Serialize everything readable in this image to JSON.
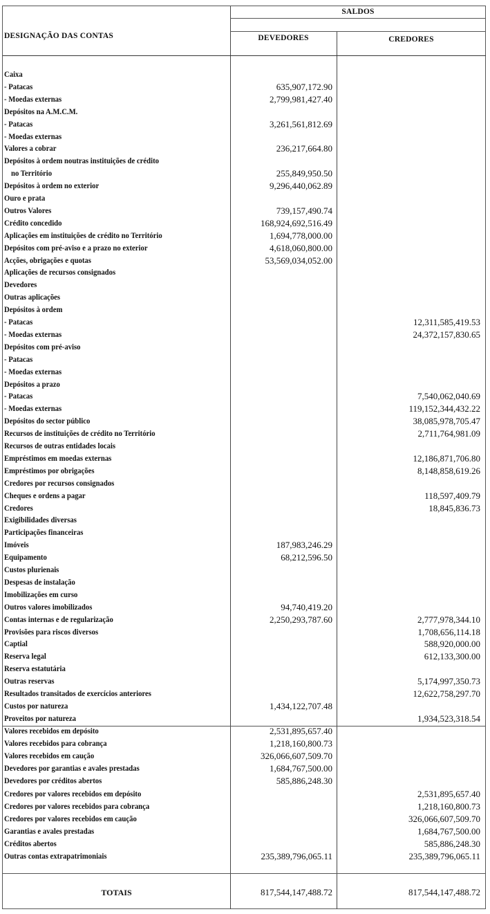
{
  "header": {
    "account_col": "DESIGNAÇÃO DAS CONTAS",
    "group": "SALDOS",
    "debit_col": "DEVEDORES",
    "credit_col": "CREDORES"
  },
  "rows": [
    {
      "label": "Caixa",
      "devedores": "",
      "credores": ""
    },
    {
      "label": "- Patacas",
      "devedores": "635,907,172.90",
      "credores": ""
    },
    {
      "label": "- Moedas externas",
      "devedores": "2,799,981,427.40",
      "credores": ""
    },
    {
      "label": "Depósitos na A.M.C.M.",
      "devedores": "",
      "credores": ""
    },
    {
      "label": "- Patacas",
      "devedores": "3,261,561,812.69",
      "credores": ""
    },
    {
      "label": "- Moedas externas",
      "devedores": "",
      "credores": ""
    },
    {
      "label": "Valores a cobrar",
      "devedores": "236,217,664.80",
      "credores": ""
    },
    {
      "label": "Depósitos à ordem noutras instituições de crédito",
      "devedores": "",
      "credores": ""
    },
    {
      "label": "no Território",
      "devedores": "255,849,950.50",
      "credores": "",
      "indent": true
    },
    {
      "label": "Depósitos à ordem no exterior",
      "devedores": "9,296,440,062.89",
      "credores": ""
    },
    {
      "label": "Ouro e prata",
      "devedores": "",
      "credores": ""
    },
    {
      "label": "Outros Valores",
      "devedores": "739,157,490.74",
      "credores": ""
    },
    {
      "label": "Crédito concedido",
      "devedores": "168,924,692,516.49",
      "credores": ""
    },
    {
      "label": "Aplicações em instituições de crédito no Território",
      "devedores": "1,694,778,000.00",
      "credores": ""
    },
    {
      "label": "Depósitos com pré-aviso e a prazo no exterior",
      "devedores": "4,618,060,800.00",
      "credores": ""
    },
    {
      "label": "Acções, obrigações e quotas",
      "devedores": "53,569,034,052.00",
      "credores": ""
    },
    {
      "label": "Aplicações de recursos consignados",
      "devedores": "",
      "credores": ""
    },
    {
      "label": "Devedores",
      "devedores": "",
      "credores": ""
    },
    {
      "label": "Outras aplicações",
      "devedores": "",
      "credores": ""
    },
    {
      "label": "Depósitos à ordem",
      "devedores": "",
      "credores": ""
    },
    {
      "label": "- Patacas",
      "devedores": "",
      "credores": "12,311,585,419.53"
    },
    {
      "label": "- Moedas externas",
      "devedores": "",
      "credores": "24,372,157,830.65"
    },
    {
      "label": "Depósitos com pré-aviso",
      "devedores": "",
      "credores": ""
    },
    {
      "label": "- Patacas",
      "devedores": "",
      "credores": ""
    },
    {
      "label": "- Moedas externas",
      "devedores": "",
      "credores": ""
    },
    {
      "label": "Depósitos a prazo",
      "devedores": "",
      "credores": ""
    },
    {
      "label": "- Patacas",
      "devedores": "",
      "credores": "7,540,062,040.69"
    },
    {
      "label": "- Moedas externas",
      "devedores": "",
      "credores": "119,152,344,432.22"
    },
    {
      "label": "Depósitos do sector público",
      "devedores": "",
      "credores": "38,085,978,705.47"
    },
    {
      "label": "Recursos de instituições de crédito no Território",
      "devedores": "",
      "credores": "2,711,764,981.09"
    },
    {
      "label": "Recursos de outras entidades locais",
      "devedores": "",
      "credores": ""
    },
    {
      "label": "Empréstimos em moedas externas",
      "devedores": "",
      "credores": "12,186,871,706.80"
    },
    {
      "label": "Empréstimos por obrigações",
      "devedores": "",
      "credores": "8,148,858,619.26"
    },
    {
      "label": "Credores por recursos consignados",
      "devedores": "",
      "credores": ""
    },
    {
      "label": "Cheques e ordens a pagar",
      "devedores": "",
      "credores": "118,597,409.79"
    },
    {
      "label": "Credores",
      "devedores": "",
      "credores": "18,845,836.73"
    },
    {
      "label": "Exigibilidades diversas",
      "devedores": "",
      "credores": ""
    },
    {
      "label": "Participações financeiras",
      "devedores": "",
      "credores": ""
    },
    {
      "label": "Imóveis",
      "devedores": "187,983,246.29",
      "credores": ""
    },
    {
      "label": "Equipamento",
      "devedores": "68,212,596.50",
      "credores": ""
    },
    {
      "label": "Custos plurienais",
      "devedores": "",
      "credores": ""
    },
    {
      "label": "Despesas de instalação",
      "devedores": "",
      "credores": ""
    },
    {
      "label": "Imobilizações em  curso",
      "devedores": "",
      "credores": ""
    },
    {
      "label": "Outros valores imobilizados",
      "devedores": "94,740,419.20",
      "credores": ""
    },
    {
      "label": "Contas internas e de regularização",
      "devedores": "2,250,293,787.60",
      "credores": "2,777,978,344.10"
    },
    {
      "label": "Provisões para riscos diversos",
      "devedores": "",
      "credores": "1,708,656,114.18"
    },
    {
      "label": "Captial",
      "devedores": "",
      "credores": "588,920,000.00"
    },
    {
      "label": "Reserva legal",
      "devedores": "",
      "credores": "612,133,300.00"
    },
    {
      "label": "Reserva estatutária",
      "devedores": "",
      "credores": ""
    },
    {
      "label": "Outras reservas",
      "devedores": "",
      "credores": "5,174,997,350.73"
    },
    {
      "label": "Resultados transitados de exercícios anteriores",
      "devedores": "",
      "credores": "12,622,758,297.70"
    },
    {
      "label": "Custos por natureza",
      "devedores": "1,434,122,707.48",
      "credores": ""
    },
    {
      "label": "Proveitos por natureza",
      "devedores": "",
      "credores": "1,934,523,318.54"
    }
  ],
  "off_balance_rows": [
    {
      "label": "Valores recebidos em depósito",
      "devedores": "2,531,895,657.40",
      "credores": ""
    },
    {
      "label": "Valores recebidos para cobrança",
      "devedores": "1,218,160,800.73",
      "credores": ""
    },
    {
      "label": "Valores recebidos em caução",
      "devedores": "326,066,607,509.70",
      "credores": ""
    },
    {
      "label": "Devedores por garantias e avales prestadas",
      "devedores": "1,684,767,500.00",
      "credores": ""
    },
    {
      "label": "Devedores por créditos abertos",
      "devedores": "585,886,248.30",
      "credores": ""
    },
    {
      "label": "Credores por valores recebidos em depósito",
      "devedores": "",
      "credores": "2,531,895,657.40"
    },
    {
      "label": "Credores por valores recebidos para cobrança",
      "devedores": "",
      "credores": "1,218,160,800.73"
    },
    {
      "label": "Credores por valores recebidos em caução",
      "devedores": "",
      "credores": "326,066,607,509.70"
    },
    {
      "label": "Garantias e avales prestadas",
      "devedores": "",
      "credores": "1,684,767,500.00"
    },
    {
      "label": "Créditos abertos",
      "devedores": "",
      "credores": "585,886,248.30"
    },
    {
      "label": "Outras contas extrapatrimoniais",
      "devedores": "235,389,796,065.11",
      "credores": "235,389,796,065.11"
    }
  ],
  "totals": {
    "label": "TOTAIS",
    "devedores": "817,544,147,488.72",
    "credores": "817,544,147,488.72"
  }
}
